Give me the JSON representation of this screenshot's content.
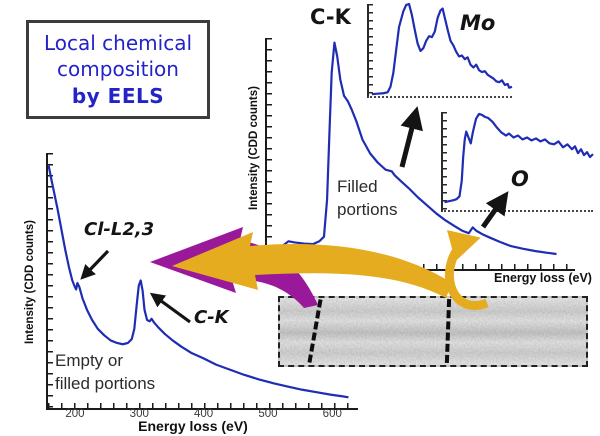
{
  "title_box": {
    "lines": [
      "Local chemical",
      "composition",
      "by EELS"
    ]
  },
  "colors": {
    "spectrum_blue": "#1f2db4",
    "title_blue": "#2323c8",
    "arrow_yellow": "#e6ac1f",
    "arrow_purple": "#9a189a",
    "annotation_black": "#141414"
  },
  "chart_data": [
    {
      "type": "line",
      "name": "empty-or-filled-portions-eels-spectrum",
      "xlabel": "Energy loss (eV)",
      "ylabel": "Intensity (CDD counts)",
      "x_ticks": [
        200,
        300,
        400,
        500,
        600
      ],
      "x_range": [
        155,
        640
      ],
      "y_range": [
        0,
        100
      ],
      "ylim_note": "intensity in arbitrary units 0-100",
      "peak_labels": [
        "Cl-L2,3",
        "C-K"
      ],
      "caption_lines": [
        "Empty or",
        "filled portions"
      ],
      "points": [
        [
          156,
          95
        ],
        [
          160,
          90
        ],
        [
          165,
          84
        ],
        [
          170,
          78
        ],
        [
          176,
          70
        ],
        [
          182,
          62
        ],
        [
          188,
          55
        ],
        [
          193,
          50
        ],
        [
          197,
          47.5
        ],
        [
          199,
          46.5
        ],
        [
          201,
          49
        ],
        [
          204,
          47.5
        ],
        [
          209,
          43
        ],
        [
          216,
          38.5
        ],
        [
          224,
          34.5
        ],
        [
          233,
          31
        ],
        [
          243,
          28.5
        ],
        [
          253,
          26.5
        ],
        [
          263,
          25.5
        ],
        [
          272,
          25
        ],
        [
          280,
          25.5
        ],
        [
          286,
          27
        ],
        [
          290,
          31
        ],
        [
          294,
          41
        ],
        [
          297,
          48
        ],
        [
          300,
          50
        ],
        [
          303,
          46
        ],
        [
          306,
          38.5
        ],
        [
          310,
          34.5
        ],
        [
          314,
          34
        ],
        [
          317,
          35
        ],
        [
          321,
          33.5
        ],
        [
          328,
          31.5
        ],
        [
          338,
          29
        ],
        [
          350,
          26.5
        ],
        [
          364,
          24
        ],
        [
          380,
          21.5
        ],
        [
          398,
          19.5
        ],
        [
          418,
          17
        ],
        [
          440,
          15
        ],
        [
          462,
          13
        ],
        [
          485,
          11.2
        ],
        [
          508,
          9.7
        ],
        [
          530,
          8.4
        ],
        [
          552,
          7.2
        ],
        [
          575,
          6.2
        ],
        [
          598,
          5.2
        ],
        [
          615,
          4.6
        ],
        [
          625,
          4.2
        ]
      ]
    },
    {
      "type": "line",
      "name": "filled-portions-eels-spectrum",
      "xlabel": "Energy loss (eV)",
      "ylabel": "Intensity (CDD counts)",
      "x_ticks": [],
      "x_range": [
        0,
        100
      ],
      "y_range": [
        0,
        100
      ],
      "peak_labels": [
        "C-K"
      ],
      "caption_lines": [
        "Filled",
        "portions"
      ],
      "points": [
        [
          2,
          1
        ],
        [
          3,
          6
        ],
        [
          5,
          10
        ],
        [
          7,
          12
        ],
        [
          9,
          11.5
        ],
        [
          12,
          11
        ],
        [
          15,
          10.8
        ],
        [
          17,
          12
        ],
        [
          18.5,
          14
        ],
        [
          19.5,
          30
        ],
        [
          20.3,
          60
        ],
        [
          21,
          85
        ],
        [
          21.9,
          98
        ],
        [
          22.8,
          92
        ],
        [
          23.8,
          82
        ],
        [
          25,
          75
        ],
        [
          26.3,
          72.5
        ],
        [
          27.5,
          69
        ],
        [
          29,
          64
        ],
        [
          31,
          56
        ],
        [
          33.5,
          50
        ],
        [
          36,
          46
        ],
        [
          38.5,
          43
        ],
        [
          40.5,
          42.3
        ],
        [
          41.5,
          40.5
        ],
        [
          43.5,
          38
        ],
        [
          46,
          35
        ],
        [
          49,
          31
        ],
        [
          52,
          27.5
        ],
        [
          55,
          24
        ],
        [
          58,
          21
        ],
        [
          61,
          18.5
        ],
        [
          63.5,
          16.5
        ],
        [
          65.5,
          15.5
        ],
        [
          66.8,
          18
        ],
        [
          68,
          16.5
        ],
        [
          70,
          15
        ],
        [
          72.5,
          13.5
        ],
        [
          75.5,
          11.8
        ],
        [
          79,
          10
        ],
        [
          83,
          8.8
        ],
        [
          87,
          7.8
        ],
        [
          91,
          7
        ],
        [
          94,
          6.5
        ]
      ]
    },
    {
      "type": "line",
      "name": "mo-edge-inset-spectrum",
      "label": "Mo",
      "x_range": [
        0,
        100
      ],
      "y_range": [
        0,
        100
      ],
      "points": [
        [
          2,
          2
        ],
        [
          6,
          2.5
        ],
        [
          10,
          3
        ],
        [
          13,
          4
        ],
        [
          15,
          10
        ],
        [
          17,
          25
        ],
        [
          19,
          50
        ],
        [
          21,
          75
        ],
        [
          24,
          92
        ],
        [
          26,
          99
        ],
        [
          28,
          100
        ],
        [
          30,
          88
        ],
        [
          32,
          72
        ],
        [
          34,
          57
        ],
        [
          36,
          49
        ],
        [
          38,
          52
        ],
        [
          40,
          60
        ],
        [
          42,
          65
        ],
        [
          44,
          64
        ],
        [
          46,
          70
        ],
        [
          48,
          85
        ],
        [
          50,
          93
        ],
        [
          51.5,
          95
        ],
        [
          53,
          85
        ],
        [
          55,
          72
        ],
        [
          57,
          60
        ],
        [
          59,
          55
        ],
        [
          61,
          48
        ],
        [
          63,
          43
        ],
        [
          65,
          44
        ],
        [
          67,
          40
        ],
        [
          69,
          42
        ],
        [
          71,
          34
        ],
        [
          73,
          31
        ],
        [
          75,
          34
        ],
        [
          77,
          28
        ],
        [
          79,
          26
        ],
        [
          81,
          27
        ],
        [
          83,
          23
        ],
        [
          85,
          21
        ],
        [
          87,
          19
        ],
        [
          89,
          16
        ],
        [
          91,
          15
        ],
        [
          93,
          17
        ],
        [
          95,
          12
        ],
        [
          97,
          13
        ],
        [
          98,
          9
        ],
        [
          100,
          10
        ]
      ]
    },
    {
      "type": "line",
      "name": "o-edge-inset-spectrum",
      "label": "O",
      "x_range": [
        0,
        100
      ],
      "y_range": [
        0,
        100
      ],
      "points": [
        [
          1,
          8
        ],
        [
          4,
          9
        ],
        [
          7,
          10
        ],
        [
          9,
          11
        ],
        [
          11,
          14
        ],
        [
          12.5,
          30
        ],
        [
          13.5,
          55
        ],
        [
          14.5,
          72
        ],
        [
          15.5,
          80
        ],
        [
          17,
          74
        ],
        [
          18.5,
          68
        ],
        [
          20,
          80
        ],
        [
          22,
          93
        ],
        [
          24,
          98
        ],
        [
          26,
          97
        ],
        [
          28,
          95
        ],
        [
          30,
          94
        ],
        [
          33,
          90
        ],
        [
          36,
          84
        ],
        [
          39,
          79
        ],
        [
          42,
          76
        ],
        [
          44,
          78
        ],
        [
          47,
          74
        ],
        [
          50,
          76
        ],
        [
          53,
          72
        ],
        [
          56,
          74
        ],
        [
          59,
          71
        ],
        [
          62,
          73
        ],
        [
          65,
          70
        ],
        [
          68,
          72
        ],
        [
          71,
          68
        ],
        [
          74,
          67
        ],
        [
          77,
          70
        ],
        [
          80,
          64
        ],
        [
          83,
          67
        ],
        [
          86,
          62
        ],
        [
          88,
          65
        ],
        [
          90,
          58
        ],
        [
          92,
          62
        ],
        [
          94,
          56
        ],
        [
          96,
          59
        ],
        [
          98,
          54
        ],
        [
          100,
          57
        ]
      ]
    }
  ]
}
